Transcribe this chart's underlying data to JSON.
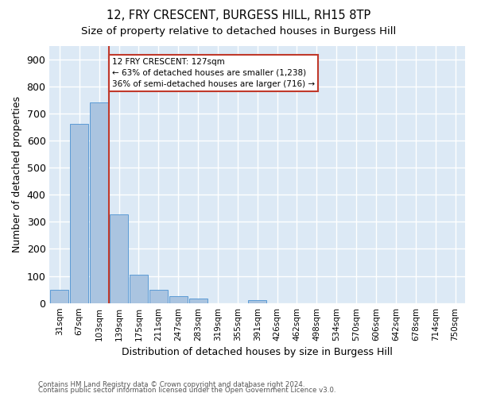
{
  "title1": "12, FRY CRESCENT, BURGESS HILL, RH15 8TP",
  "title2": "Size of property relative to detached houses in Burgess Hill",
  "xlabel": "Distribution of detached houses by size in Burgess Hill",
  "ylabel": "Number of detached properties",
  "footnote1": "Contains HM Land Registry data © Crown copyright and database right 2024.",
  "footnote2": "Contains public sector information licensed under the Open Government Licence v3.0.",
  "bin_labels": [
    "31sqm",
    "67sqm",
    "103sqm",
    "139sqm",
    "175sqm",
    "211sqm",
    "247sqm",
    "283sqm",
    "319sqm",
    "355sqm",
    "391sqm",
    "426sqm",
    "462sqm",
    "498sqm",
    "534sqm",
    "570sqm",
    "606sqm",
    "642sqm",
    "678sqm",
    "714sqm",
    "750sqm"
  ],
  "bar_heights": [
    50,
    660,
    740,
    328,
    104,
    50,
    25,
    16,
    0,
    0,
    10,
    0,
    0,
    0,
    0,
    0,
    0,
    0,
    0,
    0,
    0
  ],
  "bar_color": "#aac4e0",
  "bar_edge_color": "#5b9bd5",
  "background_color": "#dce9f5",
  "grid_color": "#ffffff",
  "vline_color": "#c0392b",
  "annotation_text": "12 FRY CRESCENT: 127sqm\n← 63% of detached houses are smaller (1,238)\n36% of semi-detached houses are larger (716) →",
  "annotation_box_color": "#ffffff",
  "annotation_box_edge_color": "#c0392b",
  "ylim": [
    0,
    950
  ],
  "yticks": [
    0,
    100,
    200,
    300,
    400,
    500,
    600,
    700,
    800,
    900
  ]
}
